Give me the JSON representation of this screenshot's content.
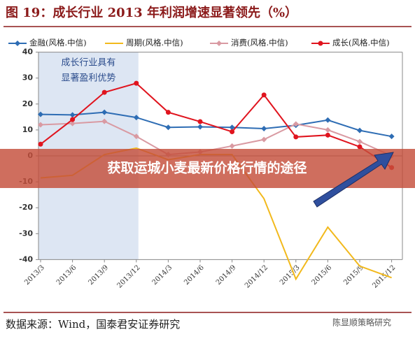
{
  "chart_data": {
    "type": "line",
    "title": "图 19：成长行业 2013 年利润增速显著领先（%）",
    "categories": [
      "2013/3",
      "2013/6",
      "2013/9",
      "2013/12",
      "2014/3",
      "2014/6",
      "2014/9",
      "2014/12",
      "2015/3",
      "2015/6",
      "2015/9",
      "2015/12"
    ],
    "series": [
      {
        "name": "金融(风格.中信)",
        "color": "#2e6db4",
        "marker": "diamond",
        "values": [
          16,
          15.8,
          16.8,
          14.8,
          11,
          11.2,
          11,
          10.5,
          11.8,
          13.8,
          9.8,
          7.5
        ]
      },
      {
        "name": "周期(风格.中信)",
        "color": "#f2b91c",
        "marker": "none",
        "values": [
          -8.5,
          -7.5,
          0.5,
          3,
          -1.5,
          0.5,
          0.5,
          -16.5,
          -47.5,
          -27.5,
          -42.5,
          -47
        ]
      },
      {
        "name": "消费(风格.中信)",
        "color": "#d99aa2",
        "marker": "diamond",
        "values": [
          12,
          12.5,
          13.3,
          7.5,
          0.5,
          1.5,
          3.8,
          6.3,
          12.3,
          10,
          5.5,
          0
        ]
      },
      {
        "name": "成长(风格.中信)",
        "color": "#e0141e",
        "marker": "circle",
        "values": [
          4.5,
          14,
          24.5,
          28,
          16.8,
          13.2,
          9.3,
          23.5,
          7.3,
          8,
          3.5,
          -4.5
        ]
      }
    ],
    "ylim": [
      -40,
      40
    ],
    "yticks": [
      -40,
      -30,
      -20,
      -10,
      0,
      10,
      20,
      30,
      40
    ],
    "annotation": [
      "成长行业具有",
      "显著盈利优势"
    ],
    "shaded_categories": [
      "2013/3",
      "2013/12"
    ],
    "legend": "top"
  },
  "source": "数据来源：Wind，国泰君安证券研究",
  "watermark": "陈显顺策略研究",
  "banner": "获取运城小麦最新价格行情的途径"
}
